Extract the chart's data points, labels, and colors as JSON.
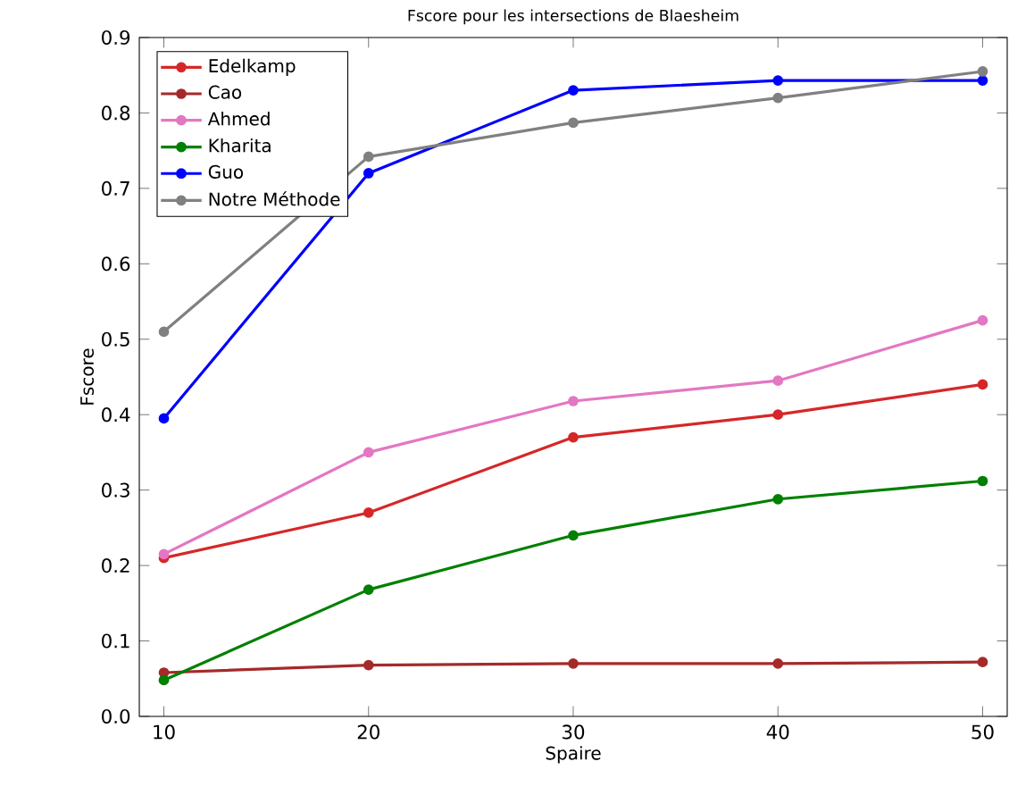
{
  "chart_data": {
    "type": "line",
    "title": "Fscore pour les intersections de Blaesheim",
    "xlabel": "Spaire",
    "ylabel": "Fscore",
    "x": [
      10,
      20,
      30,
      40,
      50
    ],
    "series": [
      {
        "name": "Edelkamp",
        "color": "#d62728",
        "values": [
          0.21,
          0.27,
          0.37,
          0.4,
          0.44
        ]
      },
      {
        "name": "Cao",
        "color": "#a52a2a",
        "values": [
          0.058,
          0.068,
          0.07,
          0.07,
          0.072
        ]
      },
      {
        "name": "Ahmed",
        "color": "#e377c2",
        "values": [
          0.215,
          0.35,
          0.418,
          0.445,
          0.525
        ]
      },
      {
        "name": "Kharita",
        "color": "#008000",
        "values": [
          0.048,
          0.168,
          0.24,
          0.288,
          0.312
        ]
      },
      {
        "name": "Guo",
        "color": "#0000ff",
        "values": [
          0.395,
          0.72,
          0.83,
          0.843,
          0.843
        ]
      },
      {
        "name": "Notre Méthode",
        "color": "#808080",
        "values": [
          0.51,
          0.742,
          0.787,
          0.82,
          0.855
        ]
      }
    ],
    "xlim": [
      8.8,
      51.2
    ],
    "ylim": [
      0,
      0.9
    ],
    "xticks": [
      10,
      20,
      30,
      40,
      50
    ],
    "yticks": [
      {
        "value": 0,
        "label": "0.0"
      },
      {
        "value": 0.1,
        "label": "0.1"
      },
      {
        "value": 0.2,
        "label": "0.2"
      },
      {
        "value": 0.3,
        "label": "0.3"
      },
      {
        "value": 0.4,
        "label": "0.4"
      },
      {
        "value": 0.5,
        "label": "0.5"
      },
      {
        "value": 0.6,
        "label": "0.6"
      },
      {
        "value": 0.7,
        "label": "0.7"
      },
      {
        "value": 0.8,
        "label": "0.8"
      },
      {
        "value": 0.9,
        "label": "0.9"
      }
    ],
    "legend": "top left",
    "marker": "circle",
    "line_style": "solid",
    "grid": false
  }
}
